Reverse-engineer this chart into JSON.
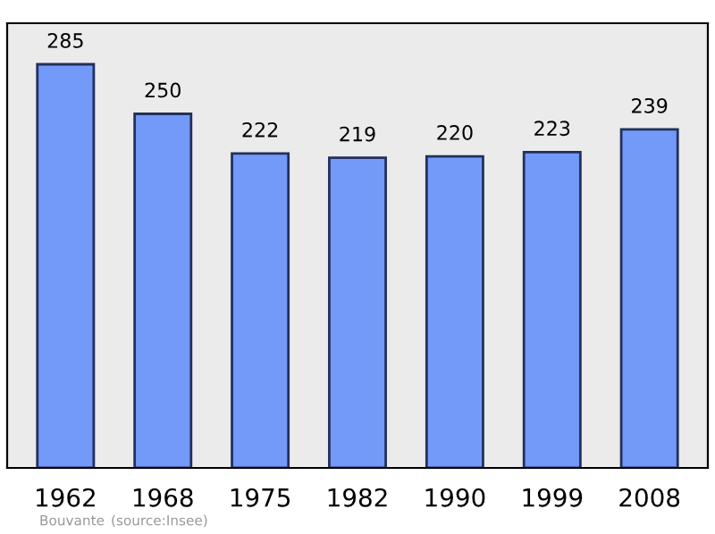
{
  "chart_data": {
    "type": "bar",
    "categories": [
      "1962",
      "1968",
      "1975",
      "1982",
      "1990",
      "1999",
      "2008"
    ],
    "values": [
      285,
      250,
      222,
      219,
      220,
      223,
      239
    ],
    "color": "#7399f9",
    "data_labels": true,
    "ylim": [
      0,
      314
    ],
    "grid": false,
    "annotations": [
      "Bouvante",
      "(source:Insee)"
    ]
  }
}
